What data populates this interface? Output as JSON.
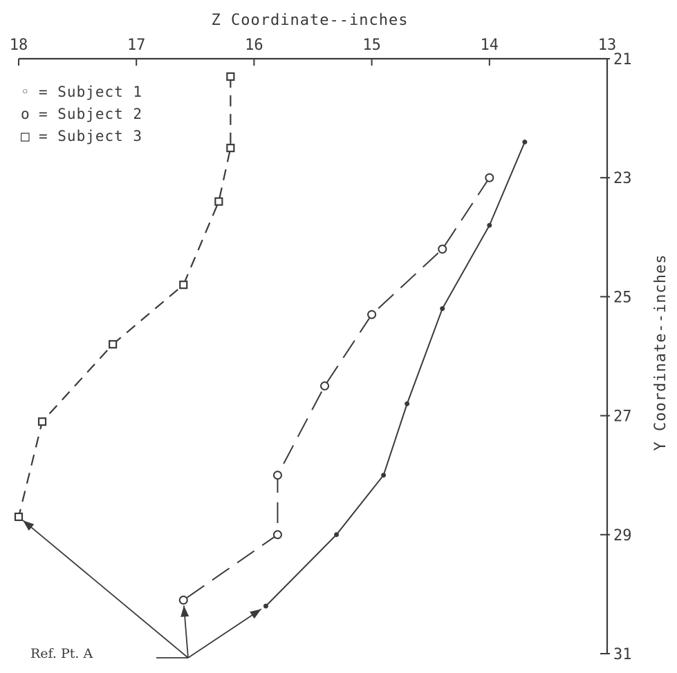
{
  "chart_data": {
    "type": "line",
    "title": "",
    "xlabel": "Z Coordinate--inches",
    "ylabel": "Y Coordinate--inches",
    "xlim": [
      18,
      13
    ],
    "ylim": [
      21,
      31
    ],
    "x_reversed": true,
    "y_reversed": true,
    "x_axis_position": "top",
    "y_axis_position": "right",
    "grid": false,
    "legend_placement": "top-left",
    "x_ticks": [
      18,
      17,
      16,
      15,
      14,
      13
    ],
    "x_tick_labels": [
      "18",
      "17",
      "16",
      "15",
      "14",
      "13"
    ],
    "y_ticks": [
      21,
      23,
      25,
      27,
      29,
      31
    ],
    "y_tick_labels": [
      "21",
      "23",
      "25",
      "27",
      "29",
      "31"
    ],
    "series": [
      {
        "name": "Subject 1",
        "marker": "dot",
        "line": "solid",
        "x": [
          13.7,
          14.0,
          14.4,
          14.7,
          14.9,
          15.3,
          15.9
        ],
        "y": [
          22.4,
          23.8,
          25.2,
          26.8,
          28.0,
          29.0,
          30.2
        ]
      },
      {
        "name": "Subject 2",
        "marker": "circle",
        "line": "longdash",
        "x": [
          14.0,
          14.4,
          15.0,
          15.4,
          15.8,
          15.8,
          16.6
        ],
        "y": [
          23.0,
          24.2,
          25.3,
          26.5,
          28.0,
          29.0,
          30.1
        ]
      },
      {
        "name": "Subject 3",
        "marker": "square",
        "line": "dashed",
        "x": [
          16.2,
          16.2,
          16.3,
          16.6,
          17.2,
          17.8,
          18.0
        ],
        "y": [
          21.3,
          22.5,
          23.4,
          24.8,
          25.8,
          27.1,
          28.7
        ]
      }
    ],
    "legend": [
      {
        "symbol": "◦",
        "label": "= Subject 1"
      },
      {
        "symbol": "o",
        "label": "= Subject 2"
      },
      {
        "symbol": "□",
        "label": "= Subject 3"
      }
    ],
    "annotation": {
      "text": "Ref. Pt. A"
    }
  }
}
